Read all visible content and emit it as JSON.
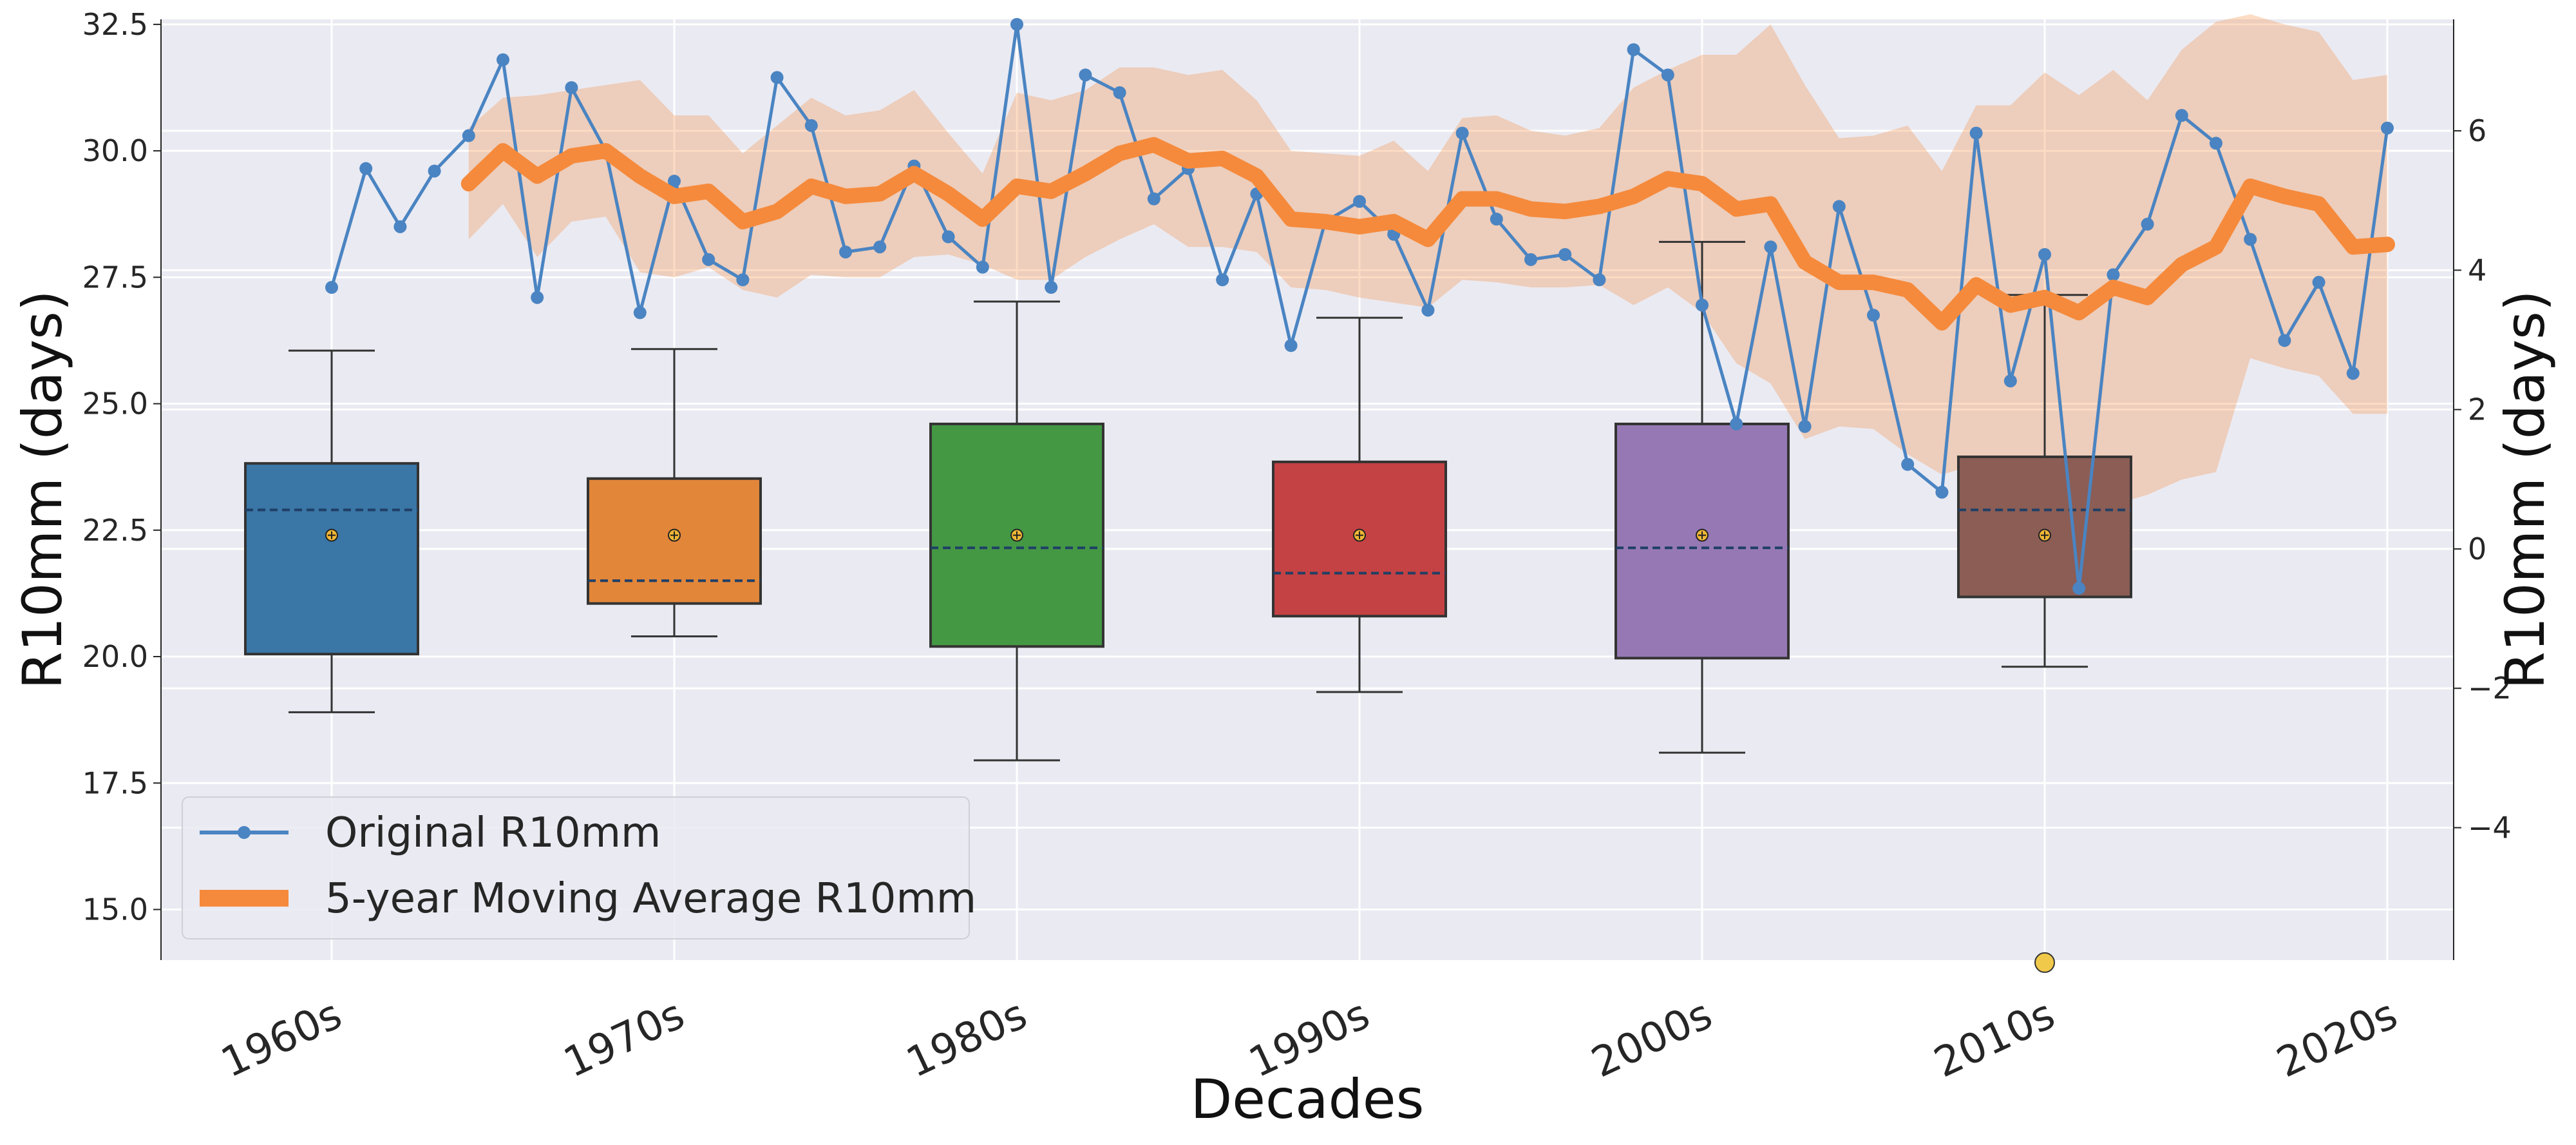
{
  "chart_data": {
    "type": "box+line",
    "xlabel": "Decades",
    "ylabel_left": "R10mm (days)",
    "ylabel_right": "R10mm (days)",
    "categories": [
      "1960s",
      "1970s",
      "1980s",
      "1990s",
      "2000s",
      "2010s",
      "2020s"
    ],
    "ylim_left": [
      14.0,
      32.6
    ],
    "yticks_left": [
      "15.0",
      "17.5",
      "20.0",
      "22.5",
      "25.0",
      "27.5",
      "30.0",
      "32.5"
    ],
    "ylim_right": [
      -5.9,
      7.6
    ],
    "yticks_right": [
      "-4",
      "-2",
      "0",
      "2",
      "4",
      "6"
    ],
    "grid": true,
    "legend_position": "lower-left",
    "boxes": [
      {
        "category": "1960s",
        "whisker_low": 18.9,
        "q1": 20.05,
        "median": 22.9,
        "q3": 23.82,
        "whisker_high": 26.05,
        "mean": 22.4,
        "color": "#3a76a6"
      },
      {
        "category": "1970s",
        "whisker_low": 20.4,
        "q1": 21.05,
        "median": 21.5,
        "q3": 23.52,
        "whisker_high": 26.08,
        "mean": 22.4,
        "color": "#e2863a"
      },
      {
        "category": "1980s",
        "whisker_low": 17.95,
        "q1": 20.2,
        "median": 22.15,
        "q3": 24.6,
        "whisker_high": 27.02,
        "mean": 22.4,
        "color": "#449844"
      },
      {
        "category": "1990s",
        "whisker_low": 19.3,
        "q1": 20.8,
        "median": 21.65,
        "q3": 23.85,
        "whisker_high": 26.7,
        "mean": 22.4,
        "color": "#c44243"
      },
      {
        "category": "2000s",
        "whisker_low": 18.1,
        "q1": 19.97,
        "median": 22.15,
        "q3": 24.6,
        "whisker_high": 28.2,
        "mean": 22.4,
        "color": "#9679b4"
      },
      {
        "category": "2010s",
        "whisker_low": 19.8,
        "q1": 21.18,
        "median": 22.9,
        "q3": 23.95,
        "whisker_high": 27.15,
        "mean": 22.4,
        "color": "#8b5d55",
        "outliers": [
          13.95
        ]
      },
      {
        "category": "2020s"
      }
    ],
    "series": [
      {
        "name": "Original R10mm",
        "axis": "left",
        "color": "#4a84c2",
        "x": [
          1960,
          1961,
          1962,
          1963,
          1964,
          1965,
          1966,
          1967,
          1968,
          1969,
          1970,
          1971,
          1972,
          1973,
          1974,
          1975,
          1976,
          1977,
          1978,
          1979,
          1980,
          1981,
          1982,
          1983,
          1984,
          1985,
          1986,
          1987,
          1988,
          1989,
          1990,
          1991,
          1992,
          1993,
          1994,
          1995,
          1996,
          1997,
          1998,
          1999,
          2000,
          2001,
          2002,
          2003,
          2004,
          2005,
          2006,
          2007,
          2008,
          2009,
          2010,
          2011,
          2012,
          2013,
          2014,
          2015,
          2016,
          2017,
          2018,
          2019,
          2020
        ],
        "values": [
          27.3,
          29.65,
          28.5,
          29.6,
          30.3,
          31.8,
          27.1,
          31.25,
          30.0,
          26.8,
          29.4,
          27.85,
          27.45,
          31.45,
          30.5,
          28.0,
          28.1,
          29.7,
          28.3,
          27.7,
          32.5,
          27.3,
          31.5,
          31.15,
          29.05,
          29.65,
          27.45,
          29.15,
          26.15,
          28.6,
          29.0,
          28.35,
          26.85,
          30.35,
          28.65,
          27.85,
          27.95,
          27.45,
          32.0,
          31.5,
          26.95,
          24.6,
          28.1,
          24.55,
          28.9,
          26.75,
          23.8,
          23.25,
          30.35,
          25.45,
          27.95,
          21.35,
          27.55,
          28.55,
          30.7,
          30.15,
          28.25,
          26.25,
          27.4,
          25.6,
          30.45
        ]
      },
      {
        "name": "5-year Moving Average R10mm",
        "axis": "left",
        "color": "#f58a3c",
        "x": [
          1964,
          1965,
          1966,
          1967,
          1968,
          1969,
          1970,
          1971,
          1972,
          1973,
          1974,
          1975,
          1976,
          1977,
          1978,
          1979,
          1980,
          1981,
          1982,
          1983,
          1984,
          1985,
          1986,
          1987,
          1988,
          1989,
          1990,
          1991,
          1992,
          1993,
          1994,
          1995,
          1996,
          1997,
          1998,
          1999,
          2000,
          2001,
          2002,
          2003,
          2004,
          2005,
          2006,
          2007,
          2008,
          2009,
          2010,
          2011,
          2012,
          2013,
          2014,
          2015,
          2016,
          2017,
          2018,
          2019,
          2020
        ],
        "values": [
          29.35,
          30.0,
          29.5,
          29.9,
          30.0,
          29.5,
          29.1,
          29.2,
          28.6,
          28.8,
          29.3,
          29.1,
          29.15,
          29.55,
          29.15,
          28.65,
          29.3,
          29.2,
          29.55,
          29.95,
          30.12,
          29.8,
          29.85,
          29.5,
          28.65,
          28.6,
          28.5,
          28.6,
          28.25,
          29.05,
          29.05,
          28.85,
          28.8,
          28.9,
          29.1,
          29.45,
          29.35,
          28.85,
          28.95,
          27.8,
          27.4,
          27.4,
          27.25,
          26.6,
          27.35,
          26.95,
          27.1,
          26.8,
          27.3,
          27.1,
          27.75,
          28.1,
          29.3,
          29.1,
          28.95,
          28.1,
          28.15
        ],
        "band_lower": [
          28.25,
          28.95,
          27.9,
          28.6,
          28.7,
          27.6,
          27.5,
          27.7,
          27.25,
          27.1,
          27.55,
          27.5,
          27.5,
          27.9,
          27.95,
          27.75,
          27.45,
          27.45,
          27.9,
          28.25,
          28.55,
          28.1,
          28.1,
          28.0,
          27.3,
          27.25,
          27.1,
          27.0,
          26.9,
          27.45,
          27.4,
          27.3,
          27.3,
          27.35,
          26.95,
          27.3,
          26.8,
          25.8,
          25.4,
          24.3,
          24.55,
          24.5,
          24.0,
          23.6,
          23.8,
          23.0,
          22.65,
          22.5,
          23.0,
          23.2,
          23.5,
          23.65,
          25.9,
          25.7,
          25.55,
          24.8,
          24.8
        ],
        "band_upper": [
          30.45,
          31.05,
          31.1,
          31.2,
          31.3,
          31.4,
          30.7,
          30.7,
          29.95,
          30.5,
          31.05,
          30.7,
          30.8,
          31.2,
          30.35,
          29.55,
          31.15,
          31.0,
          31.2,
          31.65,
          31.65,
          31.5,
          31.6,
          31.0,
          30.0,
          29.95,
          29.9,
          30.2,
          29.6,
          30.65,
          30.7,
          30.4,
          30.3,
          30.45,
          31.25,
          31.6,
          31.9,
          31.9,
          32.5,
          31.3,
          30.25,
          30.3,
          30.5,
          29.6,
          30.9,
          30.9,
          31.55,
          31.1,
          31.6,
          31.0,
          32.0,
          32.55,
          32.7,
          32.5,
          32.35,
          31.4,
          31.5
        ]
      }
    ]
  }
}
